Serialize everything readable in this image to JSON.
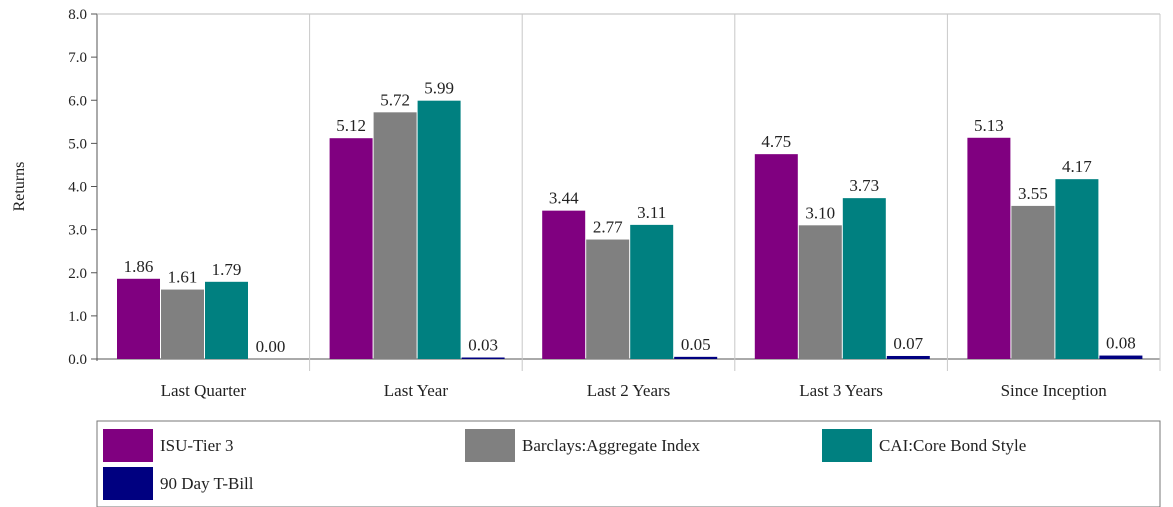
{
  "chart_data": {
    "type": "bar",
    "ylabel": "Returns",
    "xlabel": "",
    "ylim": [
      0,
      8
    ],
    "yticks": [
      "0.0",
      "1.0",
      "2.0",
      "3.0",
      "4.0",
      "5.0",
      "6.0",
      "7.0",
      "8.0"
    ],
    "grid": "vertical separators between categories",
    "categories": [
      "Last Quarter",
      "Last Year",
      "Last 2 Years",
      "Last 3 Years",
      "Since Inception"
    ],
    "series": [
      {
        "name": "ISU-Tier 3",
        "color": "#800080",
        "values": [
          1.86,
          5.12,
          3.44,
          4.75,
          5.13
        ],
        "labels": [
          "1.86",
          "5.12",
          "3.44",
          "4.75",
          "5.13"
        ]
      },
      {
        "name": "Barclays:Aggregate Index",
        "color": "#808080",
        "values": [
          1.61,
          5.72,
          2.77,
          3.1,
          3.55
        ],
        "labels": [
          "1.61",
          "5.72",
          "2.77",
          "3.10",
          "3.55"
        ]
      },
      {
        "name": "CAI:Core Bond Style",
        "color": "#008080",
        "values": [
          1.79,
          5.99,
          3.11,
          3.73,
          4.17
        ],
        "labels": [
          "1.79",
          "5.99",
          "3.11",
          "3.73",
          "4.17"
        ]
      },
      {
        "name": "90 Day T-Bill",
        "color": "#000080",
        "values": [
          0.0,
          0.03,
          0.05,
          0.07,
          0.08
        ],
        "labels": [
          "0.00",
          "0.03",
          "0.05",
          "0.07",
          "0.08"
        ]
      }
    ],
    "legend": "bottom"
  }
}
